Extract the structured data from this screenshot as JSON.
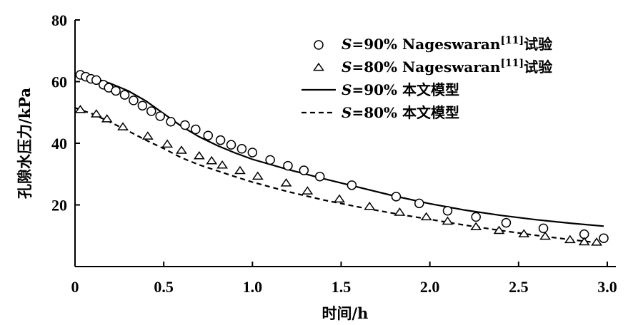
{
  "chart_data": {
    "type": "scatter",
    "title": "",
    "xlabel": "时间/h",
    "ylabel": "孔隙水压力/kPa",
    "xlim": [
      0,
      3.0
    ],
    "ylim": [
      0,
      80
    ],
    "x_ticks": [
      0,
      0.5,
      1.0,
      1.5,
      2.0,
      2.5,
      3.0
    ],
    "x_tick_labels": [
      "0",
      "0.5",
      "1.0",
      "1.5",
      "2.0",
      "2.5",
      "3.0"
    ],
    "y_ticks": [
      20,
      40,
      60,
      80
    ],
    "y_tick_labels": [
      "20",
      "40",
      "60",
      "80"
    ],
    "grid": false,
    "legend_position": "top-right",
    "legend": [
      {
        "prefix": "S",
        "text": "=90% Nageswaran",
        "sup": "[11]",
        "suffix": "试验",
        "marker": "circle"
      },
      {
        "prefix": "S",
        "text": "=80% Nageswaran",
        "sup": "[11]",
        "suffix": "试验",
        "marker": "triangle"
      },
      {
        "prefix": "S",
        "text": "=90% 本文模型",
        "sup": "",
        "suffix": "",
        "marker": "solid-line"
      },
      {
        "prefix": "S",
        "text": "=80% 本文模型",
        "sup": "",
        "suffix": "",
        "marker": "dashed-line"
      }
    ],
    "series": [
      {
        "name": "S=90% Nageswaran[11]试验",
        "kind": "scatter",
        "marker": "circle",
        "x": [
          0.03,
          0.06,
          0.09,
          0.12,
          0.16,
          0.19,
          0.23,
          0.28,
          0.33,
          0.38,
          0.43,
          0.48,
          0.54,
          0.62,
          0.68,
          0.75,
          0.82,
          0.88,
          0.94,
          1.0,
          1.1,
          1.2,
          1.29,
          1.38,
          1.56,
          1.81,
          1.94,
          2.1,
          2.26,
          2.43,
          2.64,
          2.87,
          2.98
        ],
        "y": [
          62.2,
          61.6,
          60.9,
          60.5,
          59.0,
          58.0,
          57.0,
          55.7,
          53.9,
          52.2,
          50.4,
          48.8,
          47.0,
          45.9,
          44.5,
          42.5,
          41.0,
          39.5,
          38.2,
          37.0,
          34.6,
          32.7,
          31.2,
          29.2,
          26.4,
          22.7,
          20.5,
          18.1,
          16.1,
          14.2,
          12.4,
          10.5,
          9.2
        ]
      },
      {
        "name": "S=80% Nageswaran[11]试验",
        "kind": "scatter",
        "marker": "triangle",
        "x": [
          0.03,
          0.12,
          0.18,
          0.27,
          0.41,
          0.52,
          0.6,
          0.7,
          0.77,
          0.83,
          0.93,
          1.03,
          1.19,
          1.31,
          1.49,
          1.66,
          1.83,
          1.98,
          2.1,
          2.26,
          2.39,
          2.53,
          2.65,
          2.79,
          2.87,
          2.94
        ],
        "y": [
          50.8,
          49.4,
          47.8,
          45.2,
          42.2,
          39.6,
          37.6,
          35.8,
          34.2,
          32.8,
          31.0,
          29.2,
          27.0,
          24.4,
          21.8,
          19.4,
          17.5,
          16.0,
          14.6,
          12.8,
          11.6,
          10.5,
          9.7,
          8.6,
          7.9,
          7.8
        ]
      },
      {
        "name": "S=90% 本文模型",
        "kind": "line",
        "style": "solid",
        "x": [
          0.0,
          0.1,
          0.2,
          0.3,
          0.4,
          0.5,
          0.6,
          0.7,
          0.8,
          0.9,
          1.0,
          1.2,
          1.4,
          1.6,
          1.8,
          2.0,
          2.2,
          2.4,
          2.6,
          2.8,
          2.98
        ],
        "y": [
          62.3,
          61.3,
          59.4,
          57.0,
          53.7,
          49.6,
          45.5,
          42.1,
          39.3,
          36.9,
          34.8,
          31.5,
          28.5,
          25.7,
          22.9,
          20.4,
          18.3,
          16.6,
          15.2,
          14.0,
          13.1
        ]
      },
      {
        "name": "S=80% 本文模型",
        "kind": "line",
        "style": "dashed",
        "x": [
          0.0,
          0.1,
          0.2,
          0.3,
          0.4,
          0.5,
          0.6,
          0.7,
          0.8,
          0.9,
          1.0,
          1.2,
          1.4,
          1.6,
          1.8,
          2.0,
          2.2,
          2.4,
          2.6,
          2.8,
          2.95
        ],
        "y": [
          51.5,
          49.5,
          46.8,
          44.0,
          41.0,
          38.3,
          35.3,
          33.0,
          31.1,
          29.2,
          27.4,
          24.3,
          21.6,
          19.3,
          17.2,
          15.3,
          13.4,
          11.7,
          10.1,
          8.7,
          7.7
        ]
      }
    ]
  }
}
